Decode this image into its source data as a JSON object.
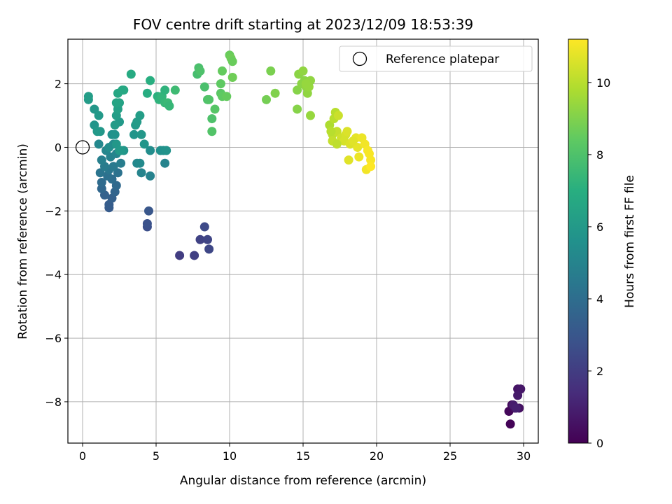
{
  "chart_data": {
    "type": "scatter",
    "title": "FOV centre drift starting at 2023/12/09 18:53:39",
    "xlabel": "Angular distance from reference (arcmin)",
    "ylabel": "Rotation from reference (arcmin)",
    "xlim": [
      -1,
      31
    ],
    "ylim": [
      -9.3,
      3.4
    ],
    "xticks": [
      0,
      5,
      10,
      15,
      20,
      25,
      30
    ],
    "yticks": [
      2,
      0,
      -2,
      -4,
      -6,
      -8
    ],
    "xtick_labels": [
      "0",
      "5",
      "10",
      "15",
      "20",
      "25",
      "30"
    ],
    "ytick_labels": [
      "2",
      "0",
      "−2",
      "−4",
      "−6",
      "−8"
    ],
    "grid": true,
    "colorscale": "viridis",
    "colorbar": {
      "label": "Hours from first FF file",
      "range": [
        0,
        11.2
      ],
      "ticks": [
        0,
        2,
        4,
        6,
        8,
        10
      ],
      "tick_labels": [
        "0",
        "2",
        "4",
        "6",
        "8",
        "10"
      ]
    },
    "legend": {
      "label": "Reference platepar",
      "location": "upper right"
    },
    "reference_point": [
      0,
      0
    ],
    "points": [
      [
        29.1,
        -8.7,
        0.1
      ],
      [
        29.0,
        -8.3,
        0.2
      ],
      [
        29.2,
        -8.1,
        0.3
      ],
      [
        29.4,
        -8.2,
        0.4
      ],
      [
        29.7,
        -8.2,
        0.5
      ],
      [
        29.6,
        -7.6,
        0.6
      ],
      [
        29.8,
        -7.6,
        0.7
      ],
      [
        29.6,
        -7.8,
        0.8
      ],
      [
        29.3,
        -8.1,
        0.9
      ],
      [
        29.5,
        -8.2,
        1.0
      ],
      [
        6.6,
        -3.4,
        2.0
      ],
      [
        7.6,
        -3.4,
        2.1
      ],
      [
        8.0,
        -2.9,
        2.2
      ],
      [
        8.5,
        -2.9,
        2.3
      ],
      [
        8.6,
        -3.2,
        2.4
      ],
      [
        8.3,
        -2.5,
        2.5
      ],
      [
        4.4,
        -2.5,
        2.7
      ],
      [
        4.4,
        -2.4,
        2.8
      ],
      [
        4.5,
        -2.0,
        3.0
      ],
      [
        1.8,
        -1.9,
        3.2
      ],
      [
        1.8,
        -1.8,
        3.3
      ],
      [
        2.0,
        -1.6,
        3.4
      ],
      [
        1.5,
        -1.5,
        3.5
      ],
      [
        2.2,
        -1.4,
        3.6
      ],
      [
        1.3,
        -1.3,
        3.7
      ],
      [
        2.3,
        -1.2,
        3.8
      ],
      [
        1.3,
        -1.1,
        3.9
      ],
      [
        2.0,
        -1.0,
        4.0
      ],
      [
        1.7,
        -0.9,
        4.1
      ],
      [
        2.4,
        -0.8,
        4.2
      ],
      [
        1.2,
        -0.8,
        4.3
      ],
      [
        1.8,
        -0.7,
        4.4
      ],
      [
        2.1,
        -0.6,
        4.5
      ],
      [
        1.5,
        -0.6,
        4.6
      ],
      [
        2.6,
        -0.5,
        4.7
      ],
      [
        1.3,
        -0.4,
        4.8
      ],
      [
        1.9,
        -0.3,
        4.9
      ],
      [
        2.3,
        -0.2,
        5.0
      ],
      [
        1.6,
        -0.1,
        5.1
      ],
      [
        1.1,
        0.1,
        5.2
      ],
      [
        2.1,
        0.1,
        5.3
      ],
      [
        1.8,
        0.0,
        5.4
      ],
      [
        4.0,
        -0.8,
        5.0
      ],
      [
        4.6,
        -0.9,
        4.9
      ],
      [
        3.7,
        -0.5,
        5.2
      ],
      [
        3.9,
        -0.5,
        5.3
      ],
      [
        4.6,
        -0.1,
        5.4
      ],
      [
        5.5,
        -0.1,
        5.5
      ],
      [
        5.6,
        -0.5,
        5.0
      ],
      [
        5.3,
        -0.1,
        5.6
      ],
      [
        5.7,
        -0.1,
        5.7
      ],
      [
        2.8,
        -0.1,
        5.8
      ],
      [
        2.5,
        -0.1,
        5.9
      ],
      [
        2.3,
        0.1,
        5.9
      ],
      [
        2.6,
        -0.1,
        6.0
      ],
      [
        4.2,
        0.1,
        5.8
      ],
      [
        2.0,
        0.4,
        5.6
      ],
      [
        2.2,
        0.4,
        5.7
      ],
      [
        3.5,
        0.4,
        5.8
      ],
      [
        4.0,
        0.4,
        5.9
      ],
      [
        3.6,
        0.7,
        6.0
      ],
      [
        3.7,
        0.8,
        6.1
      ],
      [
        3.9,
        1.0,
        6.2
      ],
      [
        2.5,
        0.8,
        6.0
      ],
      [
        2.2,
        0.7,
        6.1
      ],
      [
        1.2,
        0.5,
        5.9
      ],
      [
        0.8,
        0.7,
        5.8
      ],
      [
        1.0,
        0.5,
        6.0
      ],
      [
        0.8,
        1.2,
        5.9
      ],
      [
        1.1,
        1.0,
        6.0
      ],
      [
        0.4,
        1.5,
        6.1
      ],
      [
        0.4,
        1.6,
        6.2
      ],
      [
        2.3,
        1.0,
        6.2
      ],
      [
        2.4,
        1.2,
        6.3
      ],
      [
        2.5,
        1.4,
        6.4
      ],
      [
        2.3,
        1.4,
        6.5
      ],
      [
        2.4,
        1.7,
        6.6
      ],
      [
        2.7,
        1.8,
        6.7
      ],
      [
        2.8,
        1.8,
        6.7
      ],
      [
        3.3,
        2.3,
        6.8
      ],
      [
        4.4,
        1.7,
        6.9
      ],
      [
        4.6,
        2.1,
        7.0
      ],
      [
        5.1,
        1.6,
        7.1
      ],
      [
        5.2,
        1.5,
        7.2
      ],
      [
        5.4,
        1.6,
        7.3
      ],
      [
        5.6,
        1.8,
        7.2
      ],
      [
        5.6,
        1.4,
        7.4
      ],
      [
        5.8,
        1.4,
        7.5
      ],
      [
        5.9,
        1.3,
        7.4
      ],
      [
        6.3,
        1.8,
        7.6
      ],
      [
        7.8,
        2.3,
        7.8
      ],
      [
        7.9,
        2.5,
        7.9
      ],
      [
        8.0,
        2.4,
        8.0
      ],
      [
        8.3,
        1.9,
        7.9
      ],
      [
        8.5,
        1.5,
        8.0
      ],
      [
        8.6,
        1.5,
        8.1
      ],
      [
        8.8,
        0.9,
        8.0
      ],
      [
        8.8,
        0.5,
        8.1
      ],
      [
        9.0,
        1.2,
        8.2
      ],
      [
        9.4,
        1.7,
        8.3
      ],
      [
        9.4,
        2.0,
        8.4
      ],
      [
        9.5,
        2.4,
        8.5
      ],
      [
        9.5,
        1.6,
        8.4
      ],
      [
        9.8,
        1.6,
        8.5
      ],
      [
        10.0,
        2.9,
        8.6
      ],
      [
        10.1,
        2.8,
        8.7
      ],
      [
        10.2,
        2.7,
        8.6
      ],
      [
        10.2,
        2.2,
        8.7
      ],
      [
        12.5,
        1.5,
        8.8
      ],
      [
        12.8,
        2.4,
        8.9
      ],
      [
        13.1,
        1.7,
        9.0
      ],
      [
        14.6,
        1.2,
        9.1
      ],
      [
        14.7,
        2.3,
        9.2
      ],
      [
        14.6,
        1.8,
        9.1
      ],
      [
        14.9,
        2.0,
        9.2
      ],
      [
        15.0,
        2.4,
        9.3
      ],
      [
        15.1,
        2.1,
        9.2
      ],
      [
        15.2,
        1.9,
        9.3
      ],
      [
        15.3,
        1.7,
        9.3
      ],
      [
        15.4,
        1.9,
        9.4
      ],
      [
        15.5,
        2.1,
        9.3
      ],
      [
        15.5,
        1.0,
        9.4
      ],
      [
        15.2,
        2.0,
        9.4
      ],
      [
        16.8,
        0.7,
        9.8
      ],
      [
        17.1,
        0.9,
        10.0
      ],
      [
        17.2,
        1.1,
        10.0
      ],
      [
        17.0,
        0.4,
        10.1
      ],
      [
        17.0,
        0.2,
        10.2
      ],
      [
        17.3,
        0.5,
        10.2
      ],
      [
        17.4,
        1.0,
        10.3
      ],
      [
        17.6,
        0.3,
        10.4
      ],
      [
        17.8,
        0.2,
        10.5
      ],
      [
        17.9,
        0.4,
        10.5
      ],
      [
        18.0,
        0.5,
        10.6
      ],
      [
        18.2,
        0.1,
        10.6
      ],
      [
        18.1,
        -0.4,
        10.7
      ],
      [
        18.6,
        0.3,
        10.8
      ],
      [
        18.7,
        0.0,
        10.8
      ],
      [
        18.8,
        -0.3,
        10.9
      ],
      [
        19.0,
        0.3,
        10.9
      ],
      [
        19.2,
        0.1,
        11.0
      ],
      [
        19.3,
        -0.7,
        11.0
      ],
      [
        19.5,
        -0.2,
        11.1
      ],
      [
        19.6,
        -0.4,
        11.1
      ],
      [
        19.6,
        -0.6,
        11.2
      ],
      [
        17.3,
        0.1,
        10.1
      ],
      [
        16.9,
        0.5,
        10.0
      ],
      [
        18.4,
        0.2,
        10.7
      ],
      [
        19.4,
        -0.1,
        11.1
      ]
    ]
  }
}
